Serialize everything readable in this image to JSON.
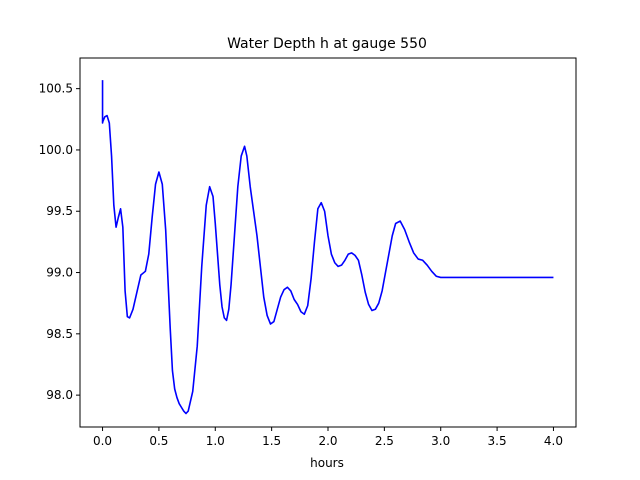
{
  "chart_data": {
    "type": "line",
    "title": "Water Depth h at gauge 550",
    "xlabel": "hours",
    "ylabel": "",
    "xlim": [
      -0.2,
      4.2
    ],
    "ylim": [
      97.74,
      100.75
    ],
    "grid": false,
    "x_ticks": [
      0.0,
      0.5,
      1.0,
      1.5,
      2.0,
      2.5,
      3.0,
      3.5,
      4.0
    ],
    "x_tick_labels": [
      "0.0",
      "0.5",
      "1.0",
      "1.5",
      "2.0",
      "2.5",
      "3.0",
      "3.5",
      "4.0"
    ],
    "y_ticks": [
      98.0,
      98.5,
      99.0,
      99.5,
      100.0,
      100.5
    ],
    "y_tick_labels": [
      "98.0",
      "98.5",
      "99.0",
      "99.5",
      "100.0",
      "100.5"
    ],
    "series": [
      {
        "color": "#0000ff",
        "x": [
          0.0,
          0.0,
          0.002,
          0.02,
          0.04,
          0.06,
          0.08,
          0.1,
          0.12,
          0.14,
          0.16,
          0.18,
          0.2,
          0.22,
          0.24,
          0.27,
          0.3,
          0.34,
          0.38,
          0.41,
          0.44,
          0.47,
          0.5,
          0.53,
          0.56,
          0.58,
          0.6,
          0.62,
          0.64,
          0.66,
          0.68,
          0.7,
          0.72,
          0.74,
          0.76,
          0.8,
          0.84,
          0.88,
          0.92,
          0.95,
          0.98,
          1.0,
          1.02,
          1.04,
          1.06,
          1.08,
          1.1,
          1.12,
          1.14,
          1.17,
          1.2,
          1.23,
          1.26,
          1.28,
          1.31,
          1.34,
          1.37,
          1.4,
          1.43,
          1.46,
          1.49,
          1.52,
          1.55,
          1.58,
          1.61,
          1.64,
          1.67,
          1.7,
          1.73,
          1.76,
          1.79,
          1.82,
          1.85,
          1.88,
          1.91,
          1.94,
          1.97,
          2.0,
          2.03,
          2.06,
          2.09,
          2.12,
          2.15,
          2.18,
          2.21,
          2.24,
          2.27,
          2.3,
          2.33,
          2.36,
          2.39,
          2.42,
          2.45,
          2.48,
          2.51,
          2.54,
          2.57,
          2.6,
          2.64,
          2.68,
          2.72,
          2.76,
          2.8,
          2.84,
          2.88,
          2.92,
          2.96,
          3.0,
          3.04,
          3.08,
          3.12,
          3.16,
          3.2,
          3.24,
          3.28,
          3.32,
          3.36,
          3.4,
          3.44,
          3.48,
          3.52,
          3.56,
          3.6,
          3.64,
          3.68,
          3.72,
          3.76,
          3.8,
          3.84,
          3.88,
          3.92,
          3.96,
          4.0
        ],
        "y": [
          100.57,
          100.22,
          100.23,
          100.27,
          100.28,
          100.22,
          99.95,
          99.55,
          99.37,
          99.45,
          99.52,
          99.37,
          98.85,
          98.64,
          98.63,
          98.7,
          98.82,
          98.98,
          99.01,
          99.15,
          99.45,
          99.72,
          99.82,
          99.72,
          99.35,
          98.95,
          98.55,
          98.2,
          98.05,
          97.98,
          97.93,
          97.9,
          97.87,
          97.85,
          97.87,
          98.03,
          98.4,
          99.05,
          99.55,
          99.7,
          99.62,
          99.4,
          99.15,
          98.9,
          98.72,
          98.63,
          98.61,
          98.7,
          98.9,
          99.3,
          99.7,
          99.95,
          100.03,
          99.95,
          99.7,
          99.5,
          99.3,
          99.05,
          98.8,
          98.65,
          98.58,
          98.6,
          98.7,
          98.8,
          98.86,
          98.88,
          98.85,
          98.78,
          98.74,
          98.68,
          98.66,
          98.73,
          98.95,
          99.25,
          99.52,
          99.57,
          99.5,
          99.3,
          99.15,
          99.08,
          99.05,
          99.06,
          99.1,
          99.15,
          99.16,
          99.14,
          99.1,
          98.98,
          98.84,
          98.74,
          98.69,
          98.7,
          98.75,
          98.85,
          99.0,
          99.15,
          99.3,
          99.4,
          99.42,
          99.35,
          99.25,
          99.16,
          99.11,
          99.1,
          99.06,
          99.01,
          98.97,
          98.96,
          98.96,
          98.96,
          98.96,
          98.96,
          98.96,
          98.96,
          98.96,
          98.96,
          98.96,
          98.96,
          98.96,
          98.96,
          98.96,
          98.96,
          98.96,
          98.96,
          98.96,
          98.96,
          98.96,
          98.96,
          98.96,
          98.96,
          98.96,
          98.96,
          98.96
        ]
      }
    ]
  }
}
